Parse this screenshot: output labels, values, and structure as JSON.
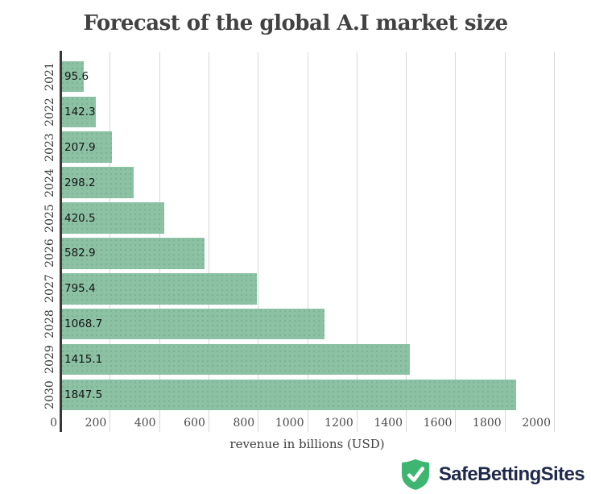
{
  "chart_data": {
    "type": "bar",
    "orientation": "horizontal",
    "title": "Forecast of the global A.I market size",
    "categories": [
      "2021",
      "2022",
      "2023",
      "2024",
      "2025",
      "2026",
      "2027",
      "2028",
      "2029",
      "2030"
    ],
    "values": [
      95.6,
      142.3,
      207.9,
      298.2,
      420.5,
      582.9,
      795.4,
      1068.7,
      1415.1,
      1847.5
    ],
    "xlabel": "revenue in billions (USD)",
    "xlim": [
      0,
      2000
    ],
    "xticks": [
      0,
      200,
      400,
      600,
      800,
      1000,
      1200,
      1400,
      1600,
      1800,
      2000
    ],
    "grid": true,
    "legend": false,
    "bar_color": "#8dc1a4",
    "axis_color": "#383838",
    "gridline_color": "#d7d7d7",
    "value_label_color": "#141414"
  },
  "branding": {
    "name": "SafeBettingSites",
    "icon": "shield-check-icon",
    "shield_color": "#3eb671",
    "checkmark_color": "#ffffff",
    "text_color": "#1f2a4a"
  }
}
